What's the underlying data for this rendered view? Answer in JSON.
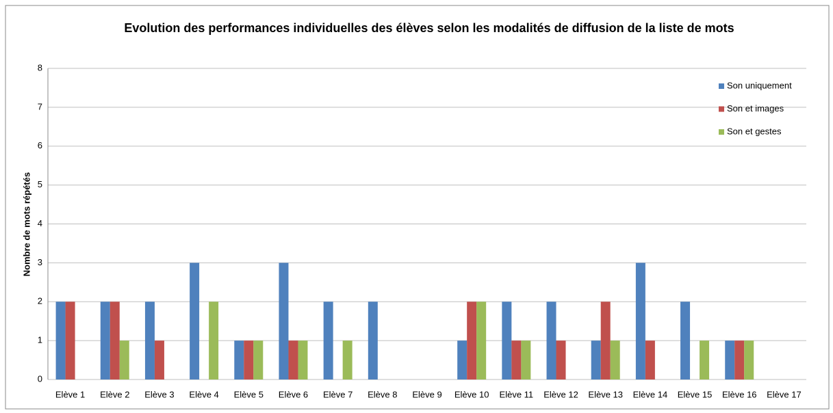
{
  "chart_data": {
    "type": "bar",
    "title": "Evolution des performances individuelles des élèves selon les modalités de diffusion de la liste de mots",
    "y_label": "Nombre de mots répétés",
    "categories": [
      "Elève 1",
      "Elève 2",
      "Elève 3",
      "Elève 4",
      "Elève 5",
      "Elève 6",
      "Elève 7",
      "Elève 8",
      "Elève 9",
      "Elève 10",
      "Elève 11",
      "Elève 12",
      "Elève 13",
      "Elève 14",
      "Elève 15",
      "Elève 16",
      "Elève 17"
    ],
    "series": [
      {
        "name": "Son uniquement",
        "color": "#4f81bd",
        "values": [
          2,
          2,
          2,
          3,
          1,
          3,
          2,
          2,
          0,
          1,
          2,
          2,
          1,
          3,
          2,
          1,
          0
        ]
      },
      {
        "name": "Son et images",
        "color": "#c0504d",
        "values": [
          2,
          2,
          1,
          0,
          1,
          1,
          0,
          0,
          0,
          2,
          1,
          1,
          2,
          1,
          0,
          1,
          0
        ]
      },
      {
        "name": "Son et gestes",
        "color": "#9bbb59",
        "values": [
          0,
          1,
          0,
          2,
          1,
          1,
          1,
          0,
          0,
          2,
          1,
          0,
          1,
          0,
          1,
          1,
          0
        ]
      }
    ],
    "ylim": [
      0,
      8
    ],
    "yticks": [
      0,
      1,
      2,
      3,
      4,
      5,
      6,
      7,
      8
    ],
    "grid": true,
    "legend": "right"
  }
}
